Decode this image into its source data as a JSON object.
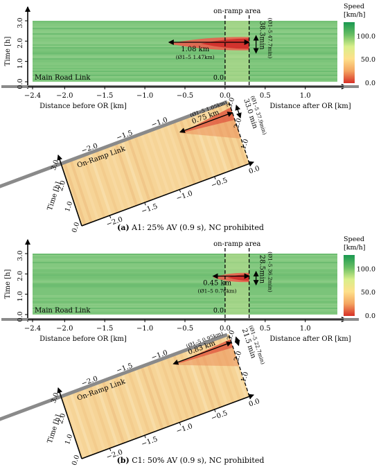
{
  "chart_data": [
    {
      "type": "heatmap",
      "panel": "a",
      "caption_label": "(a)",
      "caption_text": "A1: 25% AV (0.9 s), NC prohibited",
      "main_road": {
        "link_label": "Main Road Link",
        "xlabel_left": "Distance before OR [km]",
        "xlabel_right": "Distance after OR [km]",
        "ylabel": "Time [h]",
        "xlim": [
          -2.4,
          1.4
        ],
        "ylim": [
          0,
          3.0
        ],
        "x_ticks": [
          "-2.4",
          "-2.0",
          "-1.5",
          "-1.0",
          "-0.5",
          "0.0",
          "0.5",
          "1.0"
        ],
        "y_ticks": [
          "0.0",
          "1.0",
          "2.0",
          "3.0"
        ],
        "origin_label": "0.0",
        "onramp_area_label": "on-ramp area",
        "onramp_area_x": [
          0.0,
          0.3
        ],
        "jam": {
          "x_start": -0.7,
          "x_end": 0.3,
          "t_start": 1.55,
          "t_end": 2.2
        },
        "jam_length_label": "1.08 km",
        "jam_length_avg_label": "(Ø1–5 1.47km)",
        "jam_duration_label": "38.3min",
        "jam_duration_avg_label": "(Ø1–5 47.7min)"
      },
      "on_ramp": {
        "link_label": "On-Ramp Link",
        "ylabel": "Time [h]",
        "x_ticks": [
          "-2.0",
          "-1.5",
          "-1.0",
          "-0.5",
          "0.0"
        ],
        "y_ticks": [
          "0.0",
          "1.0",
          "2.0",
          "3.0"
        ],
        "jam": {
          "x_start": -0.75,
          "x_end": 0.0,
          "t_start": 2.1,
          "t_end": 2.7
        },
        "jam_length_label": "0.75 km",
        "jam_length_avg_label": "(Ø1–5 1.05km)",
        "jam_duration_label": "33.0 min",
        "jam_duration_avg_label": "(Ø1–5 37.9min)"
      },
      "colorbar": {
        "title_line1": "Speed",
        "title_line2": "[km/h]",
        "ticks": [
          "100.0",
          "50.0",
          "0.0"
        ],
        "tick_values": [
          100,
          50,
          0
        ],
        "range": [
          0,
          130
        ],
        "colors": [
          "#d73027",
          "#f4a460",
          "#fee08b",
          "#d9ef8b",
          "#66bd63",
          "#1a9850"
        ]
      }
    },
    {
      "type": "heatmap",
      "panel": "b",
      "caption_label": "(b)",
      "caption_text": "C1: 50% AV (0.9 s), NC prohibited",
      "main_road": {
        "link_label": "Main Road Link",
        "xlabel_left": "Distance before OR [km]",
        "xlabel_right": "Distance after OR [km]",
        "ylabel": "Time [h]",
        "xlim": [
          -2.4,
          1.4
        ],
        "ylim": [
          0,
          3.0
        ],
        "x_ticks": [
          "-2.4",
          "-2.0",
          "-1.5",
          "-1.0",
          "-0.5",
          "0.0",
          "0.5",
          "1.0"
        ],
        "y_ticks": [
          "0.0",
          "1.0",
          "2.0",
          "3.0"
        ],
        "origin_label": "0.0",
        "onramp_area_label": "on-ramp area",
        "onramp_area_x": [
          0.0,
          0.3
        ],
        "jam": {
          "x_start": -0.15,
          "x_end": 0.3,
          "t_start": 1.6,
          "t_end": 2.05
        },
        "jam_length_label": "0.45 km",
        "jam_length_avg_label": "(Ø1–5 0.76km)",
        "jam_duration_label": "28.5min",
        "jam_duration_avg_label": "(Ø1–5 36.2min)"
      },
      "on_ramp": {
        "link_label": "On-Ramp Link",
        "ylabel": "Time [h]",
        "x_ticks": [
          "-2.0",
          "-1.5",
          "-1.0",
          "-0.5",
          "0.0"
        ],
        "y_ticks": [
          "0.0",
          "1.0",
          "2.0",
          "3.0"
        ],
        "jam": {
          "x_start": -0.83,
          "x_end": 0.0,
          "t_start": 2.35,
          "t_end": 2.75
        },
        "jam_length_label": "0.83 km",
        "jam_length_avg_label": "(Ø1–5 0.95km)",
        "jam_duration_label": "21.5 min",
        "jam_duration_avg_label": "(Ø1–5 22.7min)"
      },
      "colorbar": {
        "title_line1": "Speed",
        "title_line2": "[km/h]",
        "ticks": [
          "100.0",
          "50.0",
          "0.0"
        ],
        "tick_values": [
          100,
          50,
          0
        ],
        "range": [
          0,
          130
        ],
        "colors": [
          "#d73027",
          "#f4a460",
          "#fee08b",
          "#d9ef8b",
          "#66bd63",
          "#1a9850"
        ]
      }
    }
  ]
}
